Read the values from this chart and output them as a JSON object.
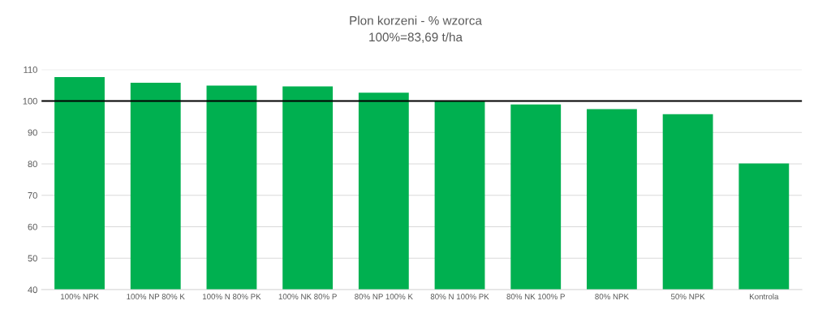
{
  "chart_data": {
    "type": "bar",
    "title": "Plon korzeni - % wzorca",
    "subtitle": "100%=83,69 t/ha",
    "categories": [
      "100% NPK",
      "100% NP 80% K",
      "100% N 80% PK",
      "100% NK 80% P",
      "80% NP 100% K",
      "80% N 100% PK",
      "80% NK 100% P",
      "80% NPK",
      "50% NPK",
      "Kontrola"
    ],
    "values": [
      107.6,
      105.8,
      104.9,
      104.6,
      102.6,
      100.1,
      98.9,
      97.4,
      95.8,
      80.1
    ],
    "color": "#00b050",
    "ylim": [
      40,
      110
    ],
    "yticks": [
      40,
      50,
      60,
      70,
      80,
      90,
      100,
      110
    ],
    "grid": "y",
    "ref_lines": [
      {
        "axis": "y",
        "value": 100,
        "color": "#000000"
      }
    ]
  }
}
